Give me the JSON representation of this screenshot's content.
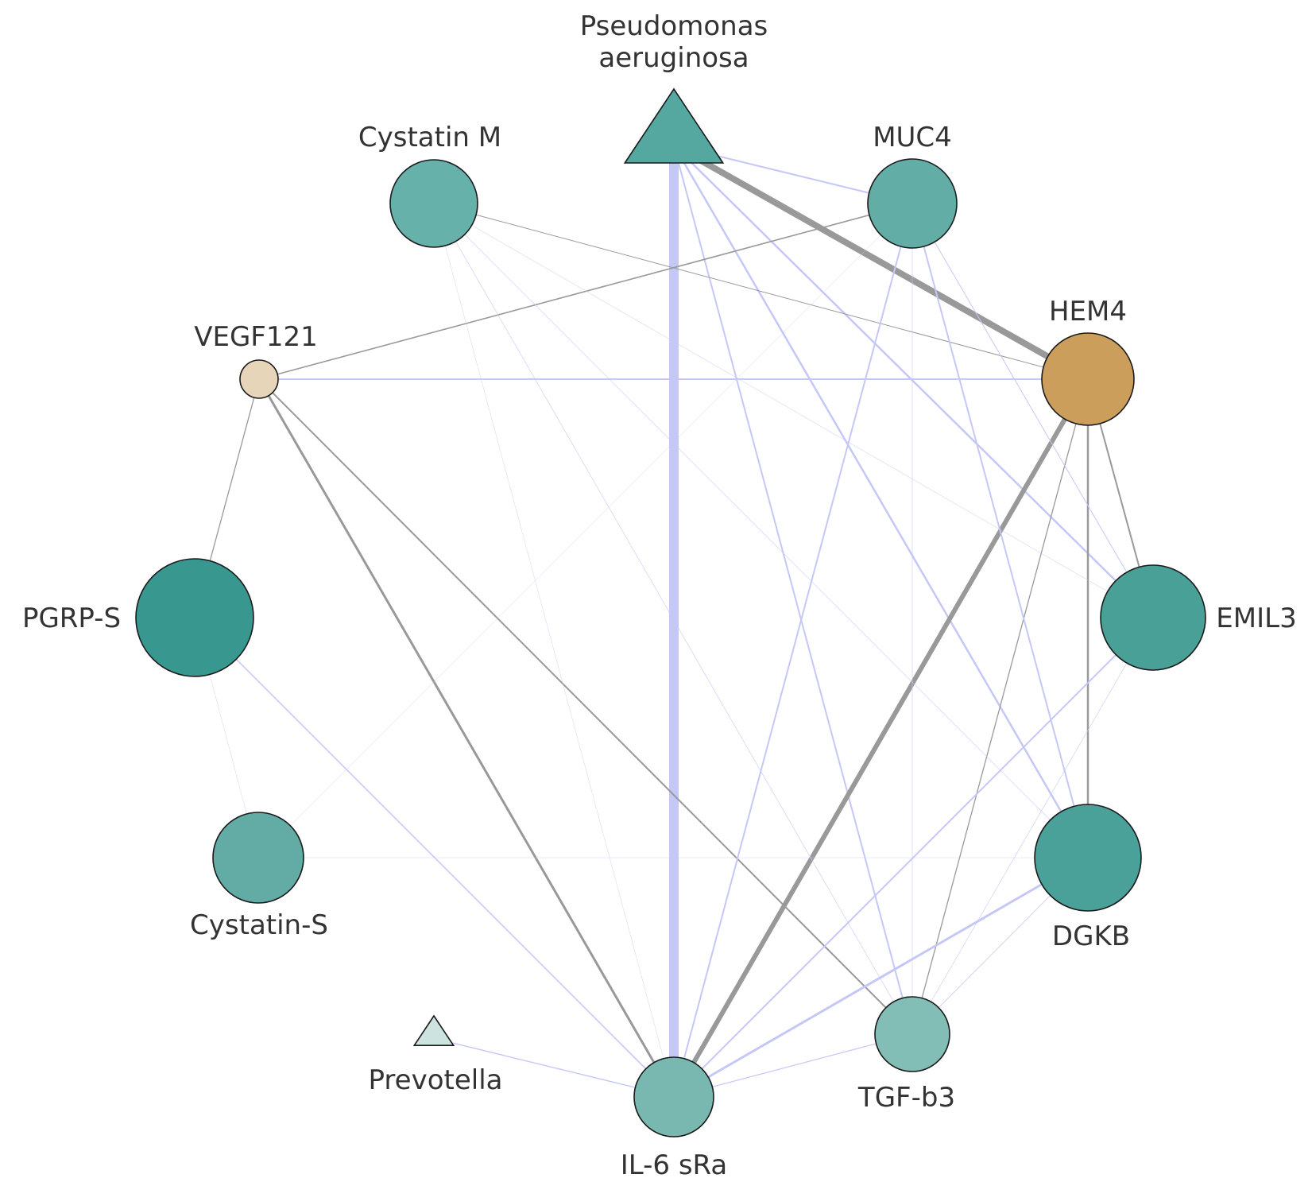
{
  "nodes": [
    {
      "id": "pseudomonas",
      "label": [
        "Pseudomonas",
        "aeruginosa"
      ],
      "shape": "triangle",
      "color": "#55a8a0"
    },
    {
      "id": "cystatin_m",
      "label": [
        "Cystatin M"
      ],
      "shape": "circle",
      "color": "#66b1a9"
    },
    {
      "id": "muc4",
      "label": [
        "MUC4"
      ],
      "shape": "circle",
      "color": "#62aea7"
    },
    {
      "id": "vegf121",
      "label": [
        "VEGF121"
      ],
      "shape": "circle",
      "color": "#e6d5b8"
    },
    {
      "id": "hem4",
      "label": [
        "HEM4"
      ],
      "shape": "circle",
      "color": "#cc9e5c"
    },
    {
      "id": "pgrp_s",
      "label": [
        "PGRP-S"
      ],
      "shape": "circle",
      "color": "#389890"
    },
    {
      "id": "emil3",
      "label": [
        "EMIL3"
      ],
      "shape": "circle",
      "color": "#48a097"
    },
    {
      "id": "cystatin_s",
      "label": [
        "Cystatin-S"
      ],
      "shape": "circle",
      "color": "#62aca5"
    },
    {
      "id": "dgkb",
      "label": [
        "DGKB"
      ],
      "shape": "circle",
      "color": "#4aa199"
    },
    {
      "id": "prevotella",
      "label": [
        "Prevotella"
      ],
      "shape": "triangle",
      "color": "#cce3df"
    },
    {
      "id": "il6sra",
      "label": [
        "IL-6 sRa"
      ],
      "shape": "circle",
      "color": "#78b8b1"
    },
    {
      "id": "tgfb3",
      "label": [
        "TGF-b3"
      ],
      "shape": "circle",
      "color": "#82bdb6"
    }
  ],
  "edge_colors": {
    "positive": "#999999",
    "negative": "#c5c8f7"
  },
  "edges": [
    {
      "source": "pseudomonas",
      "target": "il6sra",
      "sign": "negative",
      "weight": 12
    },
    {
      "source": "pseudomonas",
      "target": "hem4",
      "sign": "positive",
      "weight": 8
    },
    {
      "source": "pseudomonas",
      "target": "muc4",
      "sign": "negative",
      "weight": 2
    },
    {
      "source": "pseudomonas",
      "target": "tgfb3",
      "sign": "negative",
      "weight": 2
    },
    {
      "source": "pseudomonas",
      "target": "dgkb",
      "sign": "negative",
      "weight": 2.5
    },
    {
      "source": "pseudomonas",
      "target": "emil3",
      "sign": "negative",
      "weight": 2.5
    },
    {
      "source": "hem4",
      "target": "il6sra",
      "sign": "positive",
      "weight": 6
    },
    {
      "source": "hem4",
      "target": "dgkb",
      "sign": "positive",
      "weight": 2.5
    },
    {
      "source": "hem4",
      "target": "emil3",
      "sign": "positive",
      "weight": 2
    },
    {
      "source": "hem4",
      "target": "tgfb3",
      "sign": "positive",
      "weight": 1.3
    },
    {
      "source": "vegf121",
      "target": "hem4",
      "sign": "negative",
      "weight": 2
    },
    {
      "source": "vegf121",
      "target": "muc4",
      "sign": "positive",
      "weight": 1.6
    },
    {
      "source": "vegf121",
      "target": "pgrp_s",
      "sign": "positive",
      "weight": 1.3
    },
    {
      "source": "vegf121",
      "target": "il6sra",
      "sign": "positive",
      "weight": 3
    },
    {
      "source": "vegf121",
      "target": "tgfb3",
      "sign": "positive",
      "weight": 2
    },
    {
      "source": "cystatin_m",
      "target": "hem4",
      "sign": "positive",
      "weight": 1
    },
    {
      "source": "cystatin_m",
      "target": "dgkb",
      "sign": "negative",
      "weight": 0.6
    },
    {
      "source": "cystatin_m",
      "target": "tgfb3",
      "sign": "negative",
      "weight": 0.6
    },
    {
      "source": "cystatin_m",
      "target": "emil3",
      "sign": "negative",
      "weight": 0.5
    },
    {
      "source": "cystatin_m",
      "target": "il6sra",
      "sign": "negative",
      "weight": 0.4
    },
    {
      "source": "muc4",
      "target": "il6sra",
      "sign": "negative",
      "weight": 2
    },
    {
      "source": "muc4",
      "target": "dgkb",
      "sign": "negative",
      "weight": 2
    },
    {
      "source": "muc4",
      "target": "emil3",
      "sign": "negative",
      "weight": 1
    },
    {
      "source": "muc4",
      "target": "tgfb3",
      "sign": "negative",
      "weight": 0.6
    },
    {
      "source": "muc4",
      "target": "cystatin_s",
      "sign": "negative",
      "weight": 0.4
    },
    {
      "source": "pgrp_s",
      "target": "il6sra",
      "sign": "negative",
      "weight": 1.6
    },
    {
      "source": "pgrp_s",
      "target": "cystatin_s",
      "sign": "negative",
      "weight": 0.4
    },
    {
      "source": "prevotella",
      "target": "il6sra",
      "sign": "negative",
      "weight": 1.4
    },
    {
      "source": "il6sra",
      "target": "dgkb",
      "sign": "negative",
      "weight": 3
    },
    {
      "source": "il6sra",
      "target": "emil3",
      "sign": "negative",
      "weight": 2
    },
    {
      "source": "il6sra",
      "target": "tgfb3",
      "sign": "negative",
      "weight": 1.2
    },
    {
      "source": "tgfb3",
      "target": "dgkb",
      "sign": "negative",
      "weight": 0.8
    },
    {
      "source": "tgfb3",
      "target": "emil3",
      "sign": "negative",
      "weight": 0.6
    },
    {
      "source": "cystatin_s",
      "target": "dgkb",
      "sign": "negative",
      "weight": 0.4
    }
  ]
}
